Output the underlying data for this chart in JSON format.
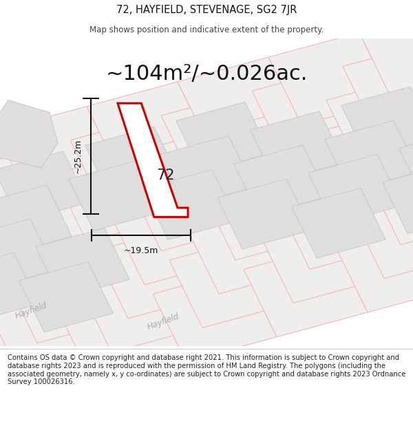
{
  "title": "72, HAYFIELD, STEVENAGE, SG2 7JR",
  "subtitle": "Map shows position and indicative extent of the property.",
  "area_text": "~104m²/~0.026ac.",
  "dim_width": "~19.5m",
  "dim_height": "~25.2m",
  "plot_number": "72",
  "footer": "Contains OS data © Crown copyright and database right 2021. This information is subject to Crown copyright and database rights 2023 and is reproduced with the permission of HM Land Registry. The polygons (including the associated geometry, namely x, y co-ordinates) are subject to Crown copyright and database rights 2023 Ordnance Survey 100026316.",
  "bg_color": "#ffffff",
  "map_bg": "#f7f5f5",
  "plot_fill": "#ffffff",
  "plot_border": "#cc0000",
  "parcel_fill": "#f0eded",
  "parcel_line": "#f0b0b0",
  "building_fill": "#e0dddd",
  "building_line": "#c8c4c4",
  "footer_bg": "#ffffff",
  "title_fontsize": 10.5,
  "subtitle_fontsize": 8.5,
  "area_fontsize": 22,
  "dim_fontsize": 9,
  "footer_fontsize": 7.2,
  "road_label_color": "#aaaaaa",
  "road_label_size": 8.5
}
